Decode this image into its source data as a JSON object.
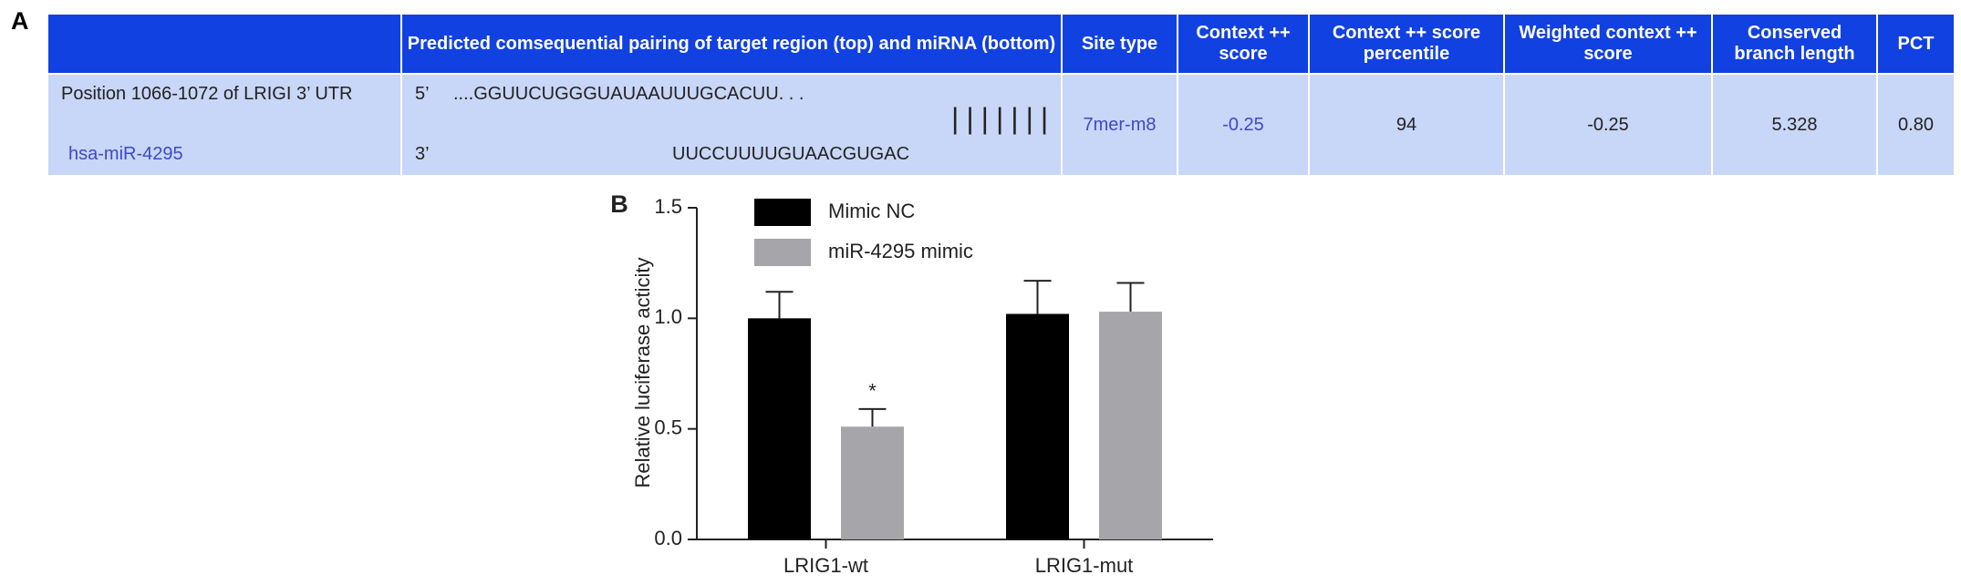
{
  "table": {
    "label": "A",
    "columns": [
      "",
      "Predicted comsequential pairing of target region (top) and miRNA (bottom)",
      "Site type",
      "Context ++ score",
      "Context ++ score percentile",
      "Weighted context ++ score",
      "Conserved branch length",
      "PCT"
    ],
    "rows": [
      [
        [
          "Position 1066-1072 of LRIGI 3’ UTR",
          "hsa-miR-4295"
        ],
        [
          "5’",
          "....GGUUCUGGGUAUAAUUUGCACUU. . .",
          "|||||||",
          "3’",
          "UUCCUUUUGUAACGUGAC"
        ],
        "7mer-m8",
        "-0.25",
        "94",
        "-0.25",
        "5.328",
        "0.80"
      ]
    ]
  },
  "chart_data": {
    "type": "bar",
    "panel_label": "B",
    "y_label": "Relative luciferase acticity",
    "categories": [
      "LRIG1-wt",
      "LRIG1-mut"
    ],
    "series": [
      {
        "name": "Mimic NC",
        "color": "#000000",
        "values": [
          1.0,
          1.02
        ],
        "errors": [
          0.12,
          0.15
        ]
      },
      {
        "name": "miR-4295 mimic",
        "color": "#a6a6aa",
        "values": [
          0.51,
          1.03
        ],
        "errors": [
          0.08,
          0.13
        ]
      }
    ],
    "annotations": [
      {
        "text": "*",
        "category": "LRIG1-wt",
        "series": "miR-4295 mimic"
      }
    ],
    "ylim": [
      0,
      1.5
    ],
    "yticks": [
      {
        "value": 0,
        "label": "0.0"
      },
      {
        "value": 0.5,
        "label": "0.5"
      },
      {
        "value": 1,
        "label": "1.0"
      },
      {
        "value": 1.5,
        "label": "1.5"
      }
    ],
    "grid": false,
    "legend": "top-left"
  }
}
